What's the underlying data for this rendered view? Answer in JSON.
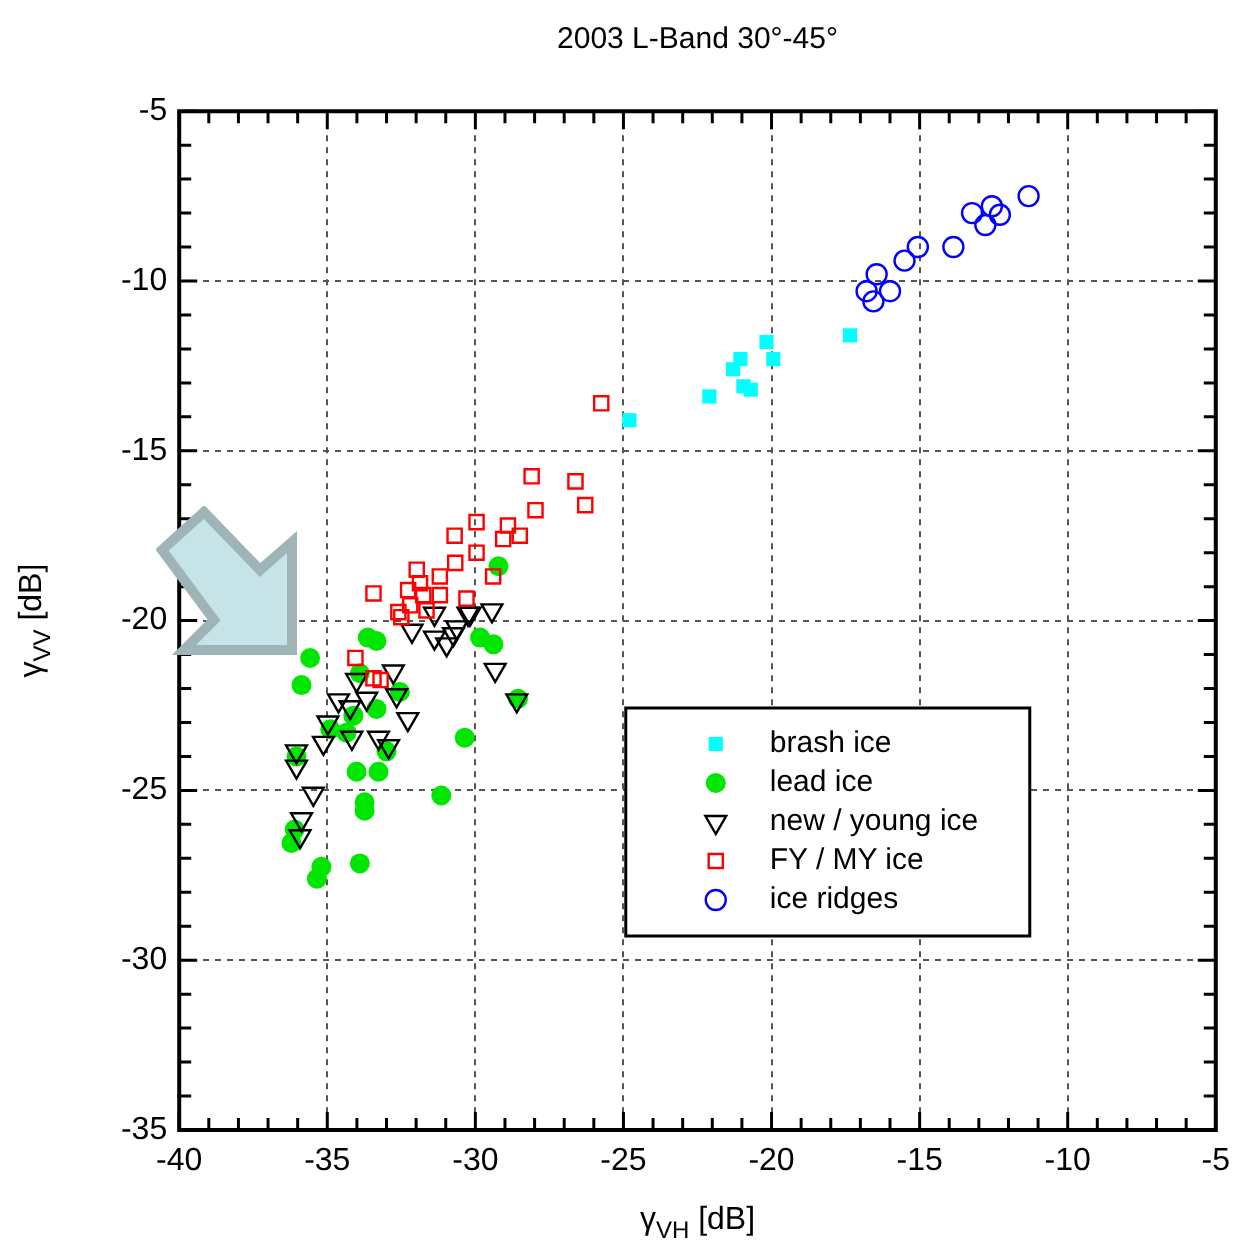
{
  "chart_data": {
    "type": "scatter",
    "title": "2003 L-Band 30°-45°",
    "xlabel": "γ$_{VH}$ [dB]",
    "ylabel": "γ$_{VV}$ [dB]",
    "xlim": [
      -40,
      -5
    ],
    "xticks": [
      -40,
      -35,
      -30,
      -25,
      -20,
      -15,
      -10,
      -5
    ],
    "ylim": [
      -35,
      -5
    ],
    "yticks": [
      -35,
      -30,
      -25,
      -20,
      -15,
      -10,
      -5
    ],
    "grid": true,
    "legend": "bottom right",
    "series": [
      {
        "name": "brash ice",
        "color": "#00ffff",
        "marker": "square",
        "x": [
          -24.8,
          -22.1,
          -21.05,
          -21.3,
          -20.95,
          -20.7,
          -20.17,
          -19.94,
          -17.35
        ],
        "values": [
          -14.1,
          -13.4,
          -12.3,
          -12.6,
          -13.1,
          -13.2,
          -11.8,
          -12.3,
          -11.6
        ]
      },
      {
        "name": "lead ice",
        "color": "#00e600",
        "marker": "circle",
        "x": [
          -33.63,
          -33.34,
          -29.84,
          -29.39,
          -29.22,
          -35.58,
          -35.87,
          -33.9,
          -32.55,
          -33.34,
          -34.12,
          -34.9,
          -34.35,
          -33.0,
          -30.36,
          -36.04,
          -34.01,
          -33.27,
          -31.15,
          -33.74,
          -33.74,
          -36.21,
          -35.2,
          -33.9,
          -28.56,
          -36.1,
          -35.35
        ],
        "values": [
          -20.5,
          -20.6,
          -20.5,
          -20.7,
          -18.4,
          -21.1,
          -21.9,
          -21.55,
          -22.1,
          -22.6,
          -22.8,
          -23.2,
          -23.3,
          -23.85,
          -23.45,
          -24.0,
          -24.45,
          -24.45,
          -25.15,
          -25.35,
          -25.6,
          -26.55,
          -27.25,
          -27.15,
          -22.3,
          -26.15,
          -27.6
        ]
      },
      {
        "name": "new / young ice",
        "color": "#000000",
        "marker": "triangle",
        "x": [
          -32.14,
          -31.38,
          -31.38,
          -30.97,
          -30.63,
          -30.25,
          -29.44,
          -29.33,
          -28.6,
          -32.77,
          -34.01,
          -33.67,
          -34.62,
          -34.23,
          -32.66,
          -32.28,
          -34.98,
          -35.13,
          -34.17,
          -33.27,
          -32.93,
          -36.04,
          -36.04,
          -35.47,
          -35.87,
          -35.92,
          -30.18,
          -30.74
        ],
        "values": [
          -20.3,
          -19.8,
          -20.5,
          -20.7,
          -20.2,
          -19.8,
          -19.7,
          -21.45,
          -22.35,
          -21.5,
          -21.75,
          -22.3,
          -22.35,
          -22.55,
          -22.2,
          -22.9,
          -23.0,
          -23.6,
          -23.45,
          -23.45,
          -23.7,
          -23.85,
          -24.3,
          -25.1,
          -25.85,
          -26.35,
          -19.8,
          -20.4
        ]
      },
      {
        "name": "FY / MY ice",
        "color": "#ff0000",
        "marker": "square",
        "x": [
          -25.75,
          -28.1,
          -26.62,
          -27.97,
          -26.29,
          -28.9,
          -28.5,
          -29.06,
          -29.96,
          -30.7,
          -29.96,
          -30.68,
          -29.4,
          -31.98,
          -31.2,
          -33.44,
          -31.87,
          -32.27,
          -31.76,
          -31.2,
          -30.3,
          -32.6,
          -32.2,
          -31.65,
          -32.5,
          -34.05,
          -33.44,
          -33.2
        ],
        "values": [
          -13.6,
          -15.75,
          -15.9,
          -16.75,
          -16.6,
          -17.2,
          -17.5,
          -17.6,
          -17.1,
          -17.5,
          -18.0,
          -18.3,
          -18.7,
          -18.5,
          -18.7,
          -19.2,
          -18.9,
          -19.1,
          -19.25,
          -19.25,
          -19.35,
          -19.75,
          -19.55,
          -19.7,
          -19.9,
          -21.1,
          -21.7,
          -21.75
        ]
      },
      {
        "name": "ice ridges",
        "color": "#0000ff",
        "marker": "circle",
        "x": [
          -11.32,
          -13.23,
          -12.56,
          -12.29,
          -12.78,
          -13.86,
          -15.06,
          -15.51,
          -16.45,
          -16.79,
          -16.0,
          -16.56
        ],
        "values": [
          -7.5,
          -8.0,
          -7.8,
          -8.05,
          -8.35,
          -9.0,
          -9.0,
          -9.4,
          -9.8,
          -10.3,
          -10.3,
          -10.6
        ]
      }
    ]
  }
}
